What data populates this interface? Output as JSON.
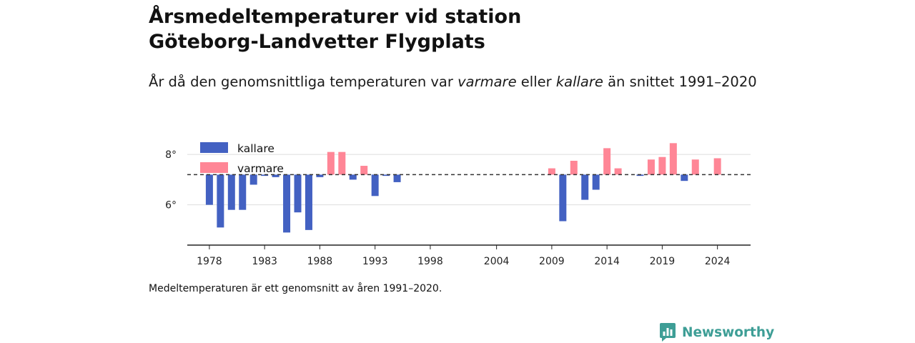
{
  "title_line1": "Årsmedeltemperaturer vid station",
  "title_line2": "Göteborg-Landvetter Flygplats",
  "subtitle": {
    "part1": "År då den genomsnittliga temperaturen var ",
    "warm_word": "varmare",
    "part2": " eller ",
    "cold_word": "kallare",
    "part3": " än snittet 1991–2020"
  },
  "footnote": "Medeltemperaturen är ett genomsnitt av åren 1991–2020.",
  "brand": "Newsworthy",
  "legend": {
    "cold": "kallare",
    "warm": "varmare"
  },
  "colors": {
    "cold": "#4361c2",
    "warm": "#ff8696",
    "brand": "#3e9e96",
    "baseline": "#333333",
    "grid": "#dddddd"
  },
  "chart_data": {
    "type": "bar",
    "baseline": 7.2,
    "baseline_style": "dashed",
    "ylim": [
      4.4,
      8.8
    ],
    "y_ticks": [
      6,
      8
    ],
    "y_tick_format": "°",
    "x_ticks": [
      1978,
      1983,
      1988,
      1993,
      1998,
      2004,
      2009,
      2014,
      2019,
      2024
    ],
    "xlim": [
      1976,
      2027
    ],
    "grid": true,
    "legend_position": "top-left",
    "x": [
      1978,
      1979,
      1980,
      1981,
      1982,
      1983,
      1984,
      1985,
      1986,
      1987,
      1988,
      1989,
      1990,
      1991,
      1992,
      1993,
      1994,
      1995,
      2009,
      2010,
      2011,
      2012,
      2013,
      2014,
      2015,
      2017,
      2018,
      2019,
      2020,
      2021,
      2022,
      2024
    ],
    "values": [
      6.0,
      5.1,
      5.8,
      5.8,
      6.8,
      7.15,
      7.1,
      4.9,
      5.7,
      5.0,
      7.1,
      8.1,
      8.1,
      7.0,
      7.55,
      6.35,
      7.15,
      6.9,
      7.45,
      5.35,
      7.75,
      6.2,
      6.6,
      8.25,
      7.45,
      7.15,
      7.8,
      7.9,
      8.45,
      6.95,
      7.8,
      7.85
    ]
  }
}
